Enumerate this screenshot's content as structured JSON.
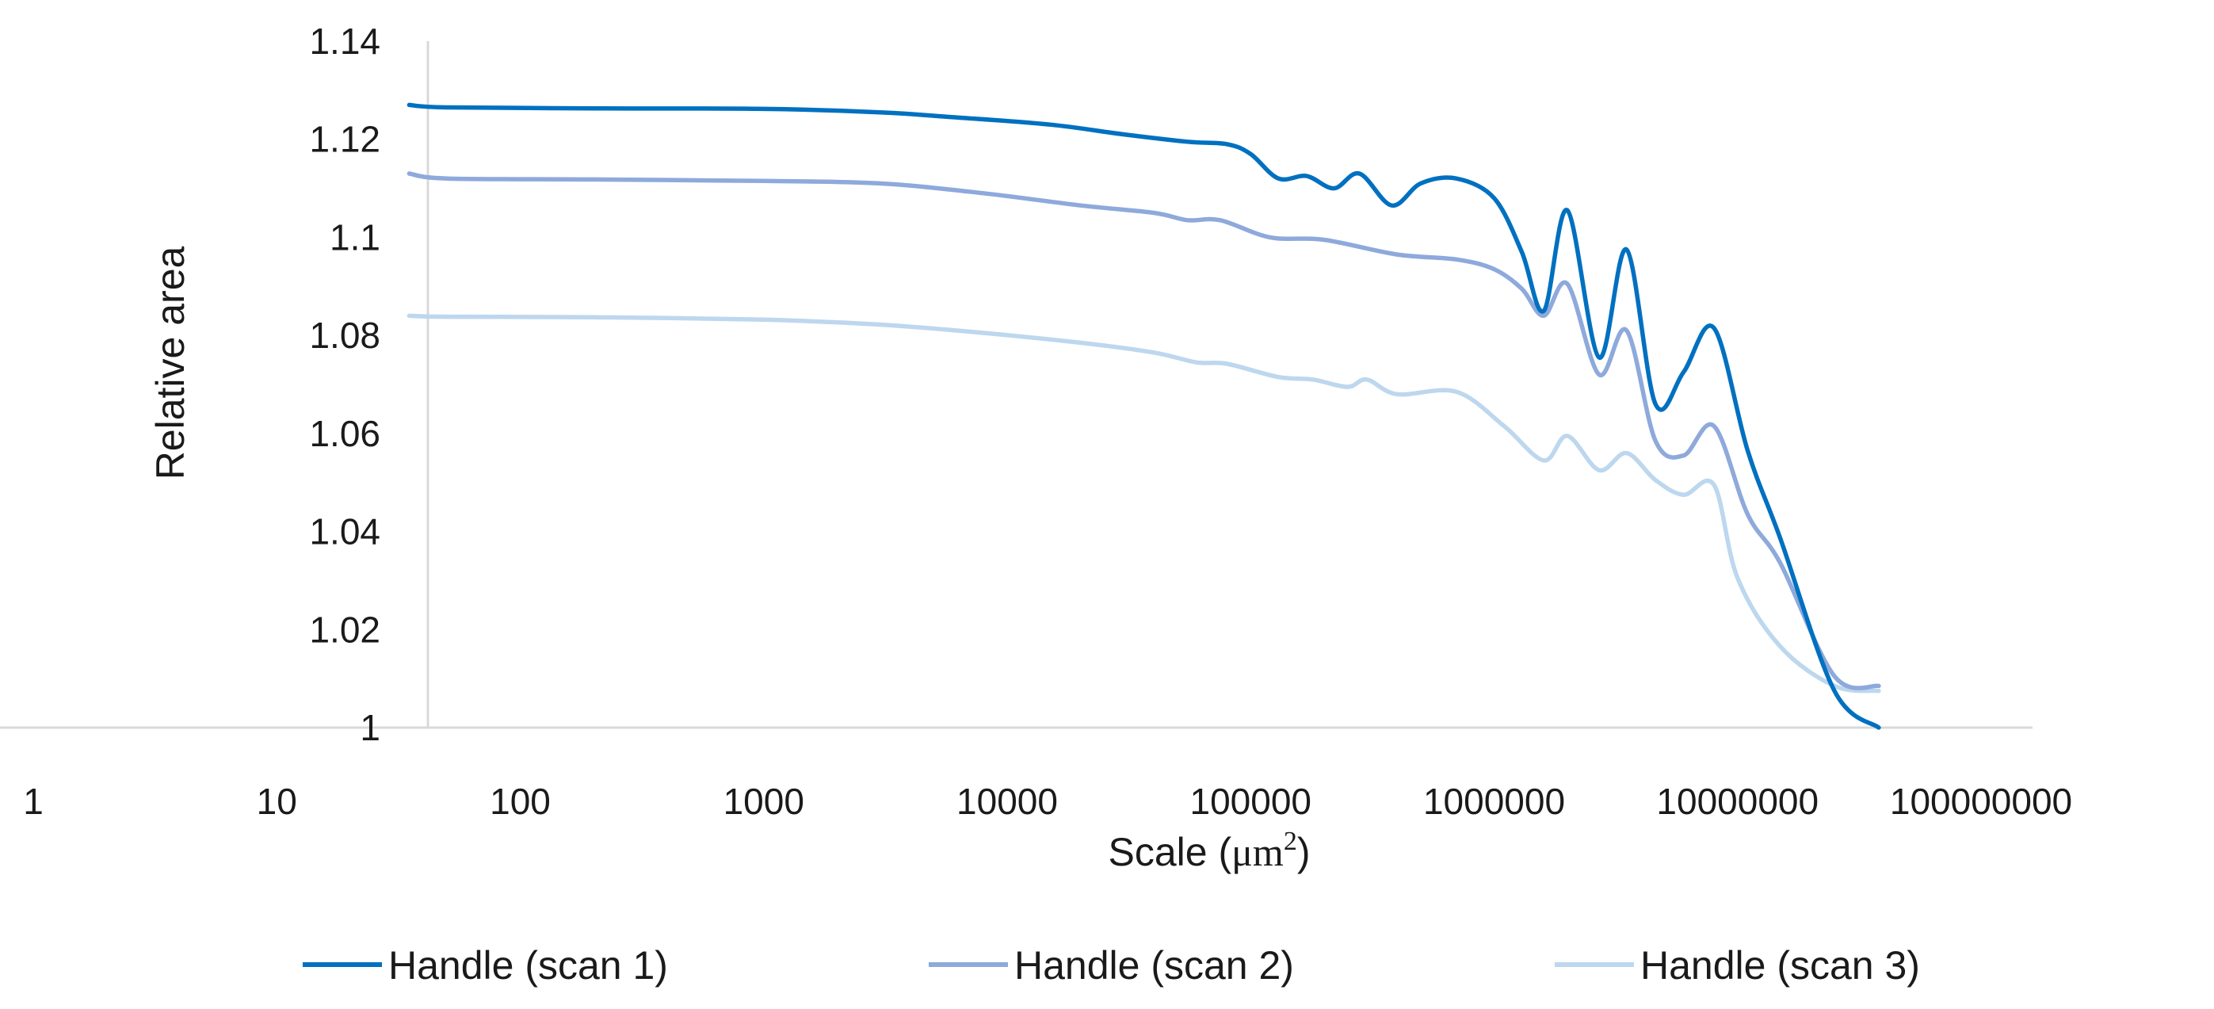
{
  "chart_data": {
    "type": "line",
    "title": "",
    "xlabel_main": "Scale (",
    "xlabel_unit": "μm",
    "xlabel_exp": "2",
    "xlabel_close": ")",
    "ylabel": "Relative area",
    "x_scale": "log",
    "xlim": [
      1,
      100000000
    ],
    "ylim": [
      1,
      1.14
    ],
    "x_ticks": [
      "1",
      "10",
      "100",
      "1000",
      "10000",
      "100000",
      "1000000",
      "10000000",
      "100000000"
    ],
    "y_ticks": [
      "1",
      "1.02",
      "1.04",
      "1.06",
      "1.08",
      "1.1",
      "1.12",
      "1.14"
    ],
    "grid": false,
    "legend_position": "bottom",
    "series": [
      {
        "name": "Handle (scan 1)",
        "color": "#0070C0",
        "points": [
          [
            35,
            1.127
          ],
          [
            50,
            1.1265
          ],
          [
            200,
            1.1263
          ],
          [
            1000,
            1.1262
          ],
          [
            3000,
            1.1255
          ],
          [
            6000,
            1.1245
          ],
          [
            15000,
            1.123
          ],
          [
            30000,
            1.121
          ],
          [
            55000,
            1.1195
          ],
          [
            80000,
            1.119
          ],
          [
            100000,
            1.117
          ],
          [
            130000,
            1.112
          ],
          [
            170000,
            1.1125
          ],
          [
            220000,
            1.11
          ],
          [
            280000,
            1.113
          ],
          [
            380000,
            1.1065
          ],
          [
            500000,
            1.111
          ],
          [
            700000,
            1.112
          ],
          [
            1000000,
            1.108
          ],
          [
            1300000,
            1.097
          ],
          [
            1600000,
            1.085
          ],
          [
            2000000,
            1.1055
          ],
          [
            2700000,
            1.0755
          ],
          [
            3500000,
            1.0975
          ],
          [
            4600000,
            1.066
          ],
          [
            6000000,
            1.0725
          ],
          [
            8000000,
            1.0815
          ],
          [
            11000000,
            1.0565
          ],
          [
            15000000,
            1.0385
          ],
          [
            25000000,
            1.0075
          ],
          [
            38000000,
            1.0
          ]
        ]
      },
      {
        "name": "Handle (scan 2)",
        "color": "#8EA9DB",
        "points": [
          [
            35,
            1.113
          ],
          [
            50,
            1.112
          ],
          [
            200,
            1.1118
          ],
          [
            1000,
            1.1115
          ],
          [
            3000,
            1.111
          ],
          [
            8000,
            1.109
          ],
          [
            20000,
            1.1065
          ],
          [
            40000,
            1.105
          ],
          [
            55000,
            1.1035
          ],
          [
            75000,
            1.1035
          ],
          [
            120000,
            1.1
          ],
          [
            200000,
            1.0995
          ],
          [
            400000,
            1.0965
          ],
          [
            700000,
            1.0955
          ],
          [
            1000000,
            1.0935
          ],
          [
            1300000,
            1.0895
          ],
          [
            1600000,
            1.084
          ],
          [
            2000000,
            1.0905
          ],
          [
            2700000,
            1.072
          ],
          [
            3500000,
            1.081
          ],
          [
            4600000,
            1.0585
          ],
          [
            6000000,
            1.0555
          ],
          [
            8000000,
            1.0615
          ],
          [
            11000000,
            1.0435
          ],
          [
            15000000,
            1.0335
          ],
          [
            25000000,
            1.0105
          ],
          [
            38000000,
            1.0085
          ]
        ]
      },
      {
        "name": "Handle (scan 3)",
        "color": "#BDD7EE",
        "points": [
          [
            35,
            1.084
          ],
          [
            50,
            1.0838
          ],
          [
            200,
            1.0837
          ],
          [
            1000,
            1.0832
          ],
          [
            3000,
            1.0822
          ],
          [
            8000,
            1.0805
          ],
          [
            20000,
            1.0785
          ],
          [
            40000,
            1.0765
          ],
          [
            60000,
            1.0745
          ],
          [
            80000,
            1.0742
          ],
          [
            130000,
            1.0715
          ],
          [
            180000,
            1.071
          ],
          [
            250000,
            1.0695
          ],
          [
            300000,
            1.071
          ],
          [
            400000,
            1.068
          ],
          [
            700000,
            1.0685
          ],
          [
            1100000,
            1.0615
          ],
          [
            1600000,
            1.0545
          ],
          [
            2000000,
            1.0595
          ],
          [
            2700000,
            1.0525
          ],
          [
            3500000,
            1.056
          ],
          [
            4600000,
            1.0505
          ],
          [
            6000000,
            1.0475
          ],
          [
            8000000,
            1.0495
          ],
          [
            10000000,
            1.0305
          ],
          [
            15000000,
            1.0165
          ],
          [
            25000000,
            1.0085
          ],
          [
            38000000,
            1.0075
          ]
        ]
      }
    ]
  }
}
